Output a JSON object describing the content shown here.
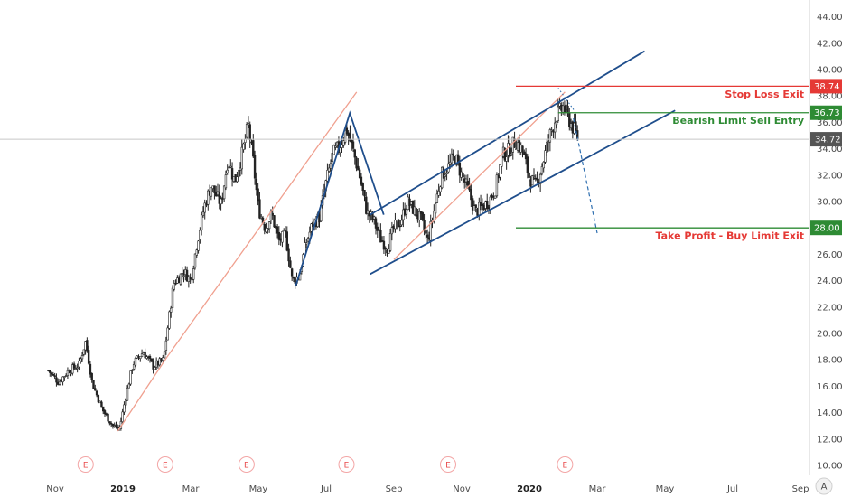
{
  "chart_data": {
    "type": "candlestick",
    "y_axis": {
      "ticks": [
        "44.00",
        "42.00",
        "40.00",
        "38.00",
        "36.00",
        "34.00",
        "32.00",
        "30.00",
        "28.00",
        "26.00",
        "24.00",
        "22.00",
        "20.00",
        "18.00",
        "16.00",
        "14.00",
        "12.00",
        "10.00"
      ],
      "range": [
        9.2,
        45.6
      ],
      "last_price_label": "34.72",
      "last_price": 34.72
    },
    "x_axis": {
      "labels": [
        {
          "text": "Nov",
          "m": -2,
          "bold": false
        },
        {
          "text": "2019",
          "m": 0,
          "bold": true
        },
        {
          "text": "Mar",
          "m": 2,
          "bold": false
        },
        {
          "text": "May",
          "m": 4,
          "bold": false
        },
        {
          "text": "Jul",
          "m": 6,
          "bold": false
        },
        {
          "text": "Sep",
          "m": 8,
          "bold": false
        },
        {
          "text": "Nov",
          "m": 10,
          "bold": false
        },
        {
          "text": "2020",
          "m": 12,
          "bold": true
        },
        {
          "text": "Mar",
          "m": 14,
          "bold": false
        },
        {
          "text": "May",
          "m": 16,
          "bold": false
        },
        {
          "text": "Jul",
          "m": 18,
          "bold": false
        },
        {
          "text": "Sep",
          "m": 20,
          "bold": false
        }
      ],
      "start_month": -2.3,
      "end_month": 21.0
    },
    "earnings_marker": "E",
    "earnings_months": [
      -1.1,
      1.25,
      3.65,
      6.6,
      9.6,
      13.05
    ],
    "price_path": [
      [
        -2.2,
        17.2
      ],
      [
        -1.9,
        16.3
      ],
      [
        -1.6,
        17.2
      ],
      [
        -1.3,
        17.6
      ],
      [
        -1.1,
        19.4
      ],
      [
        -0.9,
        16.2
      ],
      [
        -0.6,
        14.2
      ],
      [
        -0.3,
        13.0
      ],
      [
        -0.1,
        12.8
      ],
      [
        0.1,
        15.4
      ],
      [
        0.3,
        17.7
      ],
      [
        0.6,
        18.6
      ],
      [
        0.9,
        17.5
      ],
      [
        1.2,
        18.0
      ],
      [
        1.3,
        20.0
      ],
      [
        1.5,
        23.8
      ],
      [
        1.8,
        24.7
      ],
      [
        2.0,
        24.0
      ],
      [
        2.2,
        27.0
      ],
      [
        2.4,
        29.6
      ],
      [
        2.6,
        31.2
      ],
      [
        2.9,
        29.8
      ],
      [
        3.1,
        33.2
      ],
      [
        3.3,
        31.5
      ],
      [
        3.5,
        33.4
      ],
      [
        3.7,
        35.8
      ],
      [
        3.85,
        33.0
      ],
      [
        4.0,
        29.5
      ],
      [
        4.2,
        28.0
      ],
      [
        4.4,
        29.0
      ],
      [
        4.6,
        27.0
      ],
      [
        4.8,
        27.5
      ],
      [
        5.0,
        24.0
      ],
      [
        5.2,
        24.3
      ],
      [
        5.4,
        26.8
      ],
      [
        5.6,
        28.3
      ],
      [
        5.8,
        28.8
      ],
      [
        6.0,
        31.5
      ],
      [
        6.2,
        33.6
      ],
      [
        6.4,
        34.2
      ],
      [
        6.6,
        35.5
      ],
      [
        6.8,
        33.8
      ],
      [
        7.0,
        31.8
      ],
      [
        7.2,
        29.2
      ],
      [
        7.4,
        28.6
      ],
      [
        7.6,
        27.2
      ],
      [
        7.8,
        26.5
      ],
      [
        8.0,
        28.0
      ],
      [
        8.2,
        28.5
      ],
      [
        8.4,
        30.0
      ],
      [
        8.6,
        29.3
      ],
      [
        8.8,
        28.6
      ],
      [
        9.0,
        27.0
      ],
      [
        9.2,
        29.5
      ],
      [
        9.4,
        32.0
      ],
      [
        9.6,
        32.6
      ],
      [
        9.8,
        33.4
      ],
      [
        10.0,
        32.0
      ],
      [
        10.2,
        30.8
      ],
      [
        10.4,
        29.2
      ],
      [
        10.6,
        29.6
      ],
      [
        10.8,
        30.0
      ],
      [
        11.0,
        31.0
      ],
      [
        11.2,
        33.5
      ],
      [
        11.4,
        33.9
      ],
      [
        11.6,
        34.6
      ],
      [
        11.8,
        33.8
      ],
      [
        12.0,
        31.8
      ],
      [
        12.2,
        31.2
      ],
      [
        12.4,
        33.0
      ],
      [
        12.6,
        35.0
      ],
      [
        12.8,
        36.5
      ],
      [
        13.0,
        37.2
      ],
      [
        13.15,
        36.3
      ],
      [
        13.3,
        35.5
      ],
      [
        13.45,
        34.72
      ]
    ],
    "candle_seed": 7,
    "lines": [
      {
        "kind": "salmon",
        "pts": [
          [
            -0.15,
            12.6
          ],
          [
            1.3,
            18.2
          ]
        ]
      },
      {
        "kind": "salmon",
        "pts": [
          [
            1.3,
            18.2
          ],
          [
            6.9,
            38.3
          ]
        ]
      },
      {
        "kind": "salmon",
        "pts": [
          [
            8.0,
            25.6
          ],
          [
            13.05,
            38.3
          ]
        ]
      },
      {
        "kind": "blue",
        "pts": [
          [
            5.1,
            23.6
          ],
          [
            6.7,
            36.7
          ],
          [
            7.7,
            29.0
          ]
        ]
      },
      {
        "kind": "blue",
        "pts": [
          [
            7.3,
            29.0
          ],
          [
            15.4,
            41.4
          ]
        ]
      },
      {
        "kind": "blue",
        "pts": [
          [
            7.3,
            24.5
          ],
          [
            16.3,
            36.9
          ]
        ]
      },
      {
        "kind": "dashed",
        "pts": [
          [
            13.3,
            36.3
          ],
          [
            14.0,
            27.6
          ]
        ]
      },
      {
        "kind": "dotted",
        "pts": [
          [
            12.85,
            38.6
          ],
          [
            13.35,
            36.8
          ]
        ]
      }
    ],
    "levels": [
      {
        "name": "stop-loss",
        "label": "Stop Loss Exit",
        "tag": "38.74",
        "value": 38.74,
        "color": "#e53935",
        "from_month": 11.6
      },
      {
        "name": "sell-entry",
        "label": "Bearish Limit Sell Entry",
        "tag": "36.73",
        "value": 36.73,
        "color": "#2e8b34",
        "from_month": 12.85
      },
      {
        "name": "take-profit",
        "label": "Take Profit - Buy Limit Exit",
        "tag": "28.00",
        "value": 28.0,
        "color": "#2e8b34",
        "label_color": "#e53935",
        "from_month": 11.6
      }
    ],
    "colors": {
      "candle": "#222222",
      "blue_line": "#1f4e8c",
      "salmon_line": "#f0a08f",
      "last_price_tag": "#555555",
      "grid": "#c8c8c8"
    }
  },
  "corner_button": "A"
}
